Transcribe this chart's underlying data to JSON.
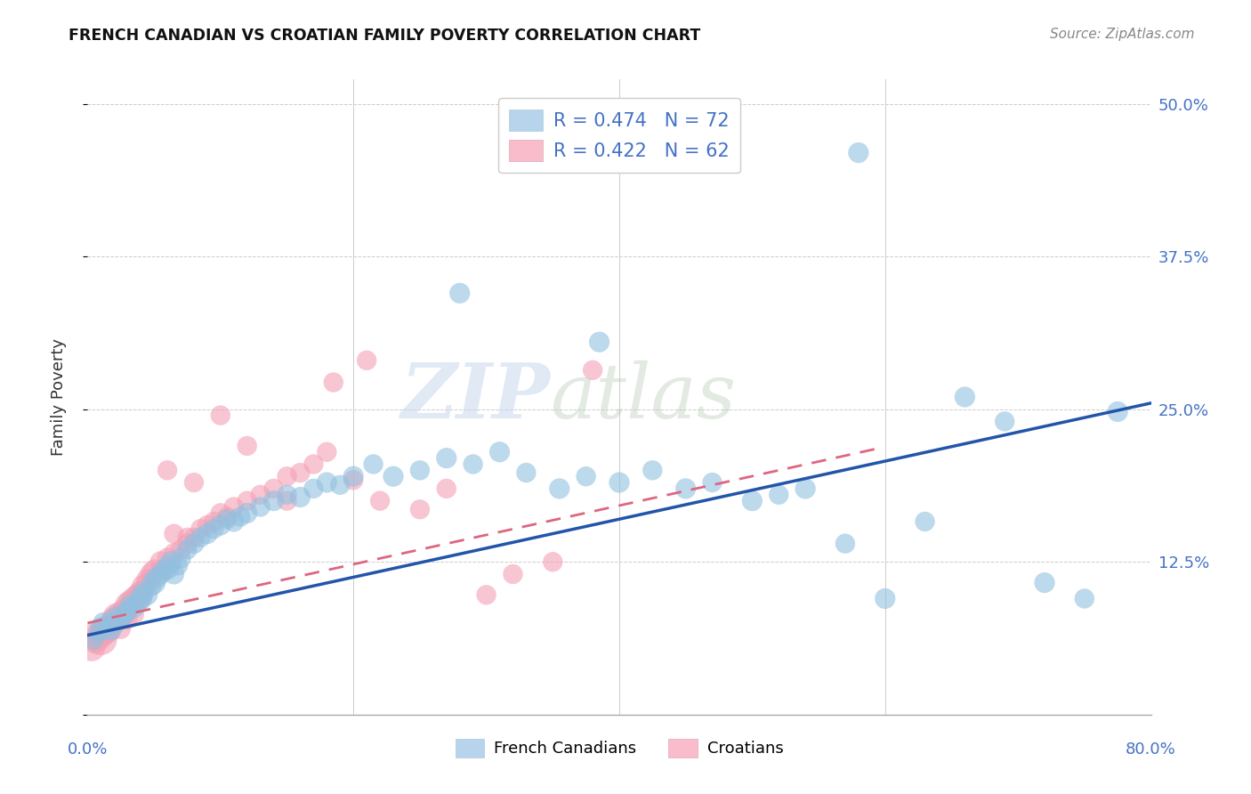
{
  "title": "FRENCH CANADIAN VS CROATIAN FAMILY POVERTY CORRELATION CHART",
  "source": "Source: ZipAtlas.com",
  "ylabel": "Family Poverty",
  "ytick_values": [
    0.0,
    0.125,
    0.25,
    0.375,
    0.5
  ],
  "ytick_labels": [
    "",
    "12.5%",
    "25.0%",
    "37.5%",
    "50.0%"
  ],
  "xlim": [
    0.0,
    0.8
  ],
  "ylim": [
    0.0,
    0.52
  ],
  "blue_scatter_color": "#92c0e0",
  "pink_scatter_color": "#f4a0b4",
  "blue_line_color": "#2255aa",
  "pink_line_color": "#dd6680",
  "axis_label_color": "#4472c4",
  "legend_blue_fill": "#b8d4ec",
  "legend_pink_fill": "#f8bccb",
  "blue_R": "0.474",
  "blue_N": "72",
  "pink_R": "0.422",
  "pink_N": "62",
  "blue_trend": [
    0.0,
    0.8,
    0.065,
    0.255
  ],
  "pink_trend": [
    0.0,
    0.595,
    0.075,
    0.218
  ],
  "blue_x": [
    0.005,
    0.008,
    0.01,
    0.012,
    0.015,
    0.018,
    0.02,
    0.022,
    0.025,
    0.028,
    0.03,
    0.032,
    0.035,
    0.038,
    0.04,
    0.042,
    0.045,
    0.048,
    0.05,
    0.052,
    0.055,
    0.058,
    0.06,
    0.063,
    0.065,
    0.068,
    0.07,
    0.075,
    0.08,
    0.085,
    0.09,
    0.095,
    0.1,
    0.105,
    0.11,
    0.115,
    0.12,
    0.13,
    0.14,
    0.15,
    0.16,
    0.17,
    0.18,
    0.19,
    0.2,
    0.215,
    0.23,
    0.25,
    0.27,
    0.29,
    0.31,
    0.33,
    0.355,
    0.375,
    0.4,
    0.425,
    0.45,
    0.47,
    0.5,
    0.52,
    0.54,
    0.57,
    0.6,
    0.63,
    0.66,
    0.69,
    0.72,
    0.75,
    0.775,
    0.385,
    0.28,
    0.58
  ],
  "blue_y": [
    0.06,
    0.065,
    0.07,
    0.075,
    0.072,
    0.068,
    0.075,
    0.08,
    0.078,
    0.082,
    0.085,
    0.09,
    0.088,
    0.092,
    0.095,
    0.1,
    0.098,
    0.105,
    0.108,
    0.112,
    0.115,
    0.118,
    0.12,
    0.125,
    0.115,
    0.122,
    0.128,
    0.135,
    0.14,
    0.145,
    0.148,
    0.152,
    0.155,
    0.16,
    0.158,
    0.162,
    0.165,
    0.17,
    0.175,
    0.18,
    0.178,
    0.185,
    0.19,
    0.188,
    0.195,
    0.205,
    0.195,
    0.2,
    0.21,
    0.205,
    0.215,
    0.198,
    0.185,
    0.195,
    0.19,
    0.2,
    0.185,
    0.19,
    0.175,
    0.18,
    0.185,
    0.14,
    0.095,
    0.158,
    0.26,
    0.24,
    0.108,
    0.095,
    0.248,
    0.305,
    0.345,
    0.46
  ],
  "blue_sizes": [
    200,
    180,
    350,
    300,
    250,
    220,
    350,
    300,
    280,
    260,
    280,
    260,
    300,
    280,
    350,
    300,
    280,
    260,
    350,
    300,
    280,
    260,
    350,
    300,
    280,
    260,
    280,
    260,
    280,
    260,
    280,
    260,
    280,
    260,
    280,
    260,
    280,
    260,
    280,
    260,
    280,
    260,
    280,
    260,
    280,
    260,
    280,
    260,
    280,
    260,
    280,
    260,
    280,
    260,
    280,
    260,
    280,
    260,
    280,
    260,
    280,
    260,
    280,
    260,
    280,
    260,
    280,
    260,
    280,
    280,
    280,
    280
  ],
  "pink_x": [
    0.003,
    0.006,
    0.008,
    0.01,
    0.012,
    0.015,
    0.018,
    0.02,
    0.022,
    0.025,
    0.028,
    0.03,
    0.032,
    0.035,
    0.038,
    0.04,
    0.042,
    0.045,
    0.048,
    0.05,
    0.055,
    0.06,
    0.065,
    0.07,
    0.075,
    0.08,
    0.09,
    0.1,
    0.11,
    0.12,
    0.13,
    0.14,
    0.15,
    0.16,
    0.17,
    0.18,
    0.2,
    0.22,
    0.25,
    0.27,
    0.3,
    0.32,
    0.35,
    0.38,
    0.1,
    0.12,
    0.15,
    0.08,
    0.06,
    0.04,
    0.025,
    0.03,
    0.035,
    0.045,
    0.055,
    0.065,
    0.075,
    0.085,
    0.095,
    0.105,
    0.185,
    0.21
  ],
  "pink_y": [
    0.055,
    0.06,
    0.065,
    0.062,
    0.068,
    0.07,
    0.075,
    0.078,
    0.08,
    0.082,
    0.085,
    0.09,
    0.092,
    0.095,
    0.098,
    0.1,
    0.105,
    0.11,
    0.115,
    0.118,
    0.125,
    0.128,
    0.132,
    0.135,
    0.14,
    0.145,
    0.155,
    0.165,
    0.17,
    0.175,
    0.18,
    0.185,
    0.195,
    0.198,
    0.205,
    0.215,
    0.192,
    0.175,
    0.168,
    0.185,
    0.098,
    0.115,
    0.125,
    0.282,
    0.245,
    0.22,
    0.175,
    0.19,
    0.2,
    0.095,
    0.07,
    0.078,
    0.082,
    0.108,
    0.118,
    0.148,
    0.145,
    0.152,
    0.158,
    0.162,
    0.272,
    0.29
  ],
  "pink_sizes": [
    500,
    400,
    600,
    700,
    500,
    500,
    400,
    400,
    500,
    450,
    400,
    400,
    380,
    380,
    360,
    360,
    360,
    340,
    340,
    320,
    300,
    280,
    280,
    260,
    260,
    260,
    260,
    260,
    260,
    260,
    260,
    260,
    260,
    260,
    260,
    260,
    260,
    260,
    260,
    260,
    260,
    260,
    260,
    260,
    260,
    260,
    260,
    260,
    260,
    260,
    260,
    260,
    260,
    260,
    260,
    260,
    260,
    260,
    260,
    260,
    260,
    260
  ]
}
